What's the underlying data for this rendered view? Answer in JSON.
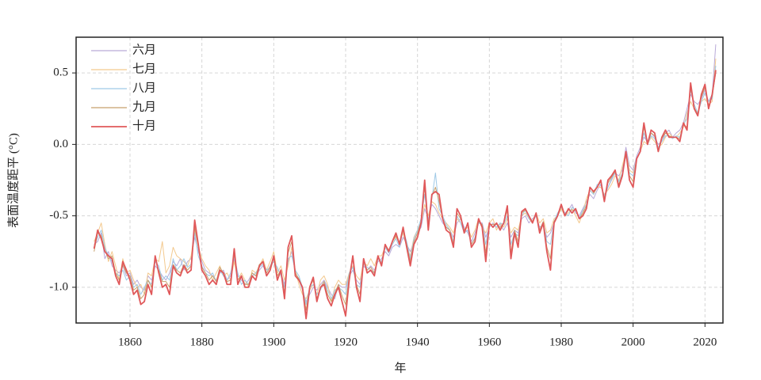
{
  "chart_data": {
    "type": "line",
    "xlabel": "年",
    "ylabel": "表面温度距平 (°C)",
    "xlim": [
      1845,
      2025
    ],
    "xticks": [
      1860,
      1880,
      1900,
      1920,
      1940,
      1960,
      1980,
      2000,
      2020
    ],
    "ylim": [
      -1.25,
      0.75
    ],
    "yticks": [
      {
        "value": -1.0,
        "label": "-1.0"
      },
      -0.5,
      {
        "value": 0.0,
        "label": "0.0"
      },
      0.5
    ],
    "grid": true,
    "legend": "upper left",
    "x": [
      1850,
      1851,
      1852,
      1853,
      1854,
      1855,
      1856,
      1857,
      1858,
      1859,
      1860,
      1861,
      1862,
      1863,
      1864,
      1865,
      1866,
      1867,
      1868,
      1869,
      1870,
      1871,
      1872,
      1873,
      1874,
      1875,
      1876,
      1877,
      1878,
      1879,
      1880,
      1881,
      1882,
      1883,
      1884,
      1885,
      1886,
      1887,
      1888,
      1889,
      1890,
      1891,
      1892,
      1893,
      1894,
      1895,
      1896,
      1897,
      1898,
      1899,
      1900,
      1901,
      1902,
      1903,
      1904,
      1905,
      1906,
      1907,
      1908,
      1909,
      1910,
      1911,
      1912,
      1913,
      1914,
      1915,
      1916,
      1917,
      1918,
      1919,
      1920,
      1921,
      1922,
      1923,
      1924,
      1925,
      1926,
      1927,
      1928,
      1929,
      1930,
      1931,
      1932,
      1933,
      1934,
      1935,
      1936,
      1937,
      1938,
      1939,
      1940,
      1941,
      1942,
      1943,
      1944,
      1945,
      1946,
      1947,
      1948,
      1949,
      1950,
      1951,
      1952,
      1953,
      1954,
      1955,
      1956,
      1957,
      1958,
      1959,
      1960,
      1961,
      1962,
      1963,
      1964,
      1965,
      1966,
      1967,
      1968,
      1969,
      1970,
      1971,
      1972,
      1973,
      1974,
      1975,
      1976,
      1977,
      1978,
      1979,
      1980,
      1981,
      1982,
      1983,
      1984,
      1985,
      1986,
      1987,
      1988,
      1989,
      1990,
      1991,
      1992,
      1993,
      1994,
      1995,
      1996,
      1997,
      1998,
      1999,
      2000,
      2001,
      2002,
      2003,
      2004,
      2005,
      2006,
      2007,
      2008,
      2009,
      2010,
      2011,
      2012,
      2013,
      2014,
      2015,
      2016,
      2017,
      2018,
      2019,
      2020,
      2021,
      2022,
      2023
    ],
    "series": [
      {
        "name": "六月",
        "color": "#b9aad8",
        "values": [
          -0.7,
          -0.68,
          -0.62,
          -0.8,
          -0.75,
          -0.85,
          -0.88,
          -0.9,
          -0.85,
          -0.92,
          -0.9,
          -0.98,
          -0.95,
          -1.0,
          -1.02,
          -0.92,
          -0.95,
          -0.85,
          -0.88,
          -0.92,
          -0.95,
          -0.9,
          -0.82,
          -0.85,
          -0.8,
          -0.88,
          -0.82,
          -0.8,
          -0.65,
          -0.75,
          -0.82,
          -0.88,
          -0.9,
          -0.92,
          -0.95,
          -0.9,
          -0.88,
          -0.95,
          -0.92,
          -0.8,
          -0.92,
          -0.95,
          -0.98,
          -0.95,
          -0.9,
          -0.92,
          -0.88,
          -0.85,
          -0.9,
          -0.85,
          -0.8,
          -0.88,
          -0.9,
          -0.98,
          -0.82,
          -0.75,
          -0.9,
          -0.95,
          -1.02,
          -1.1,
          -1.05,
          -1.0,
          -1.02,
          -0.98,
          -0.95,
          -1.0,
          -1.05,
          -1.08,
          -0.98,
          -1.0,
          -1.0,
          -0.92,
          -0.88,
          -0.95,
          -0.98,
          -0.85,
          -0.88,
          -0.85,
          -0.88,
          -0.82,
          -0.8,
          -0.75,
          -0.78,
          -0.72,
          -0.7,
          -0.72,
          -0.65,
          -0.7,
          -0.75,
          -0.68,
          -0.62,
          -0.58,
          -0.45,
          -0.52,
          -0.42,
          -0.45,
          -0.5,
          -0.55,
          -0.58,
          -0.6,
          -0.65,
          -0.55,
          -0.52,
          -0.58,
          -0.62,
          -0.68,
          -0.62,
          -0.55,
          -0.55,
          -0.65,
          -0.58,
          -0.55,
          -0.58,
          -0.56,
          -0.6,
          -0.55,
          -0.65,
          -0.6,
          -0.62,
          -0.52,
          -0.5,
          -0.55,
          -0.52,
          -0.5,
          -0.58,
          -0.56,
          -0.65,
          -0.62,
          -0.55,
          -0.48,
          -0.45,
          -0.48,
          -0.46,
          -0.42,
          -0.48,
          -0.5,
          -0.45,
          -0.4,
          -0.35,
          -0.38,
          -0.32,
          -0.28,
          -0.38,
          -0.3,
          -0.25,
          -0.2,
          -0.22,
          -0.18,
          -0.02,
          -0.15,
          -0.18,
          -0.08,
          -0.02,
          0.05,
          0.02,
          0.08,
          0.05,
          0.0,
          0.02,
          0.08,
          0.1,
          0.05,
          0.08,
          0.1,
          0.15,
          0.25,
          0.35,
          0.3,
          0.28,
          0.32,
          0.38,
          0.3,
          0.35,
          0.7
        ]
      },
      {
        "name": "七月",
        "color": "#f3c98e",
        "values": [
          -0.68,
          -0.62,
          -0.55,
          -0.7,
          -0.82,
          -0.75,
          -0.85,
          -0.95,
          -0.8,
          -0.9,
          -0.88,
          -0.95,
          -1.0,
          -0.98,
          -1.05,
          -0.9,
          -0.92,
          -0.8,
          -0.82,
          -0.68,
          -0.9,
          -0.85,
          -0.72,
          -0.78,
          -0.8,
          -0.82,
          -0.85,
          -0.78,
          -0.6,
          -0.72,
          -0.8,
          -0.85,
          -0.88,
          -0.95,
          -0.9,
          -0.85,
          -0.92,
          -0.9,
          -0.95,
          -0.82,
          -0.95,
          -0.9,
          -0.95,
          -1.0,
          -0.88,
          -0.9,
          -0.85,
          -0.8,
          -0.88,
          -0.82,
          -0.75,
          -0.9,
          -0.85,
          -0.95,
          -0.85,
          -0.72,
          -0.88,
          -0.98,
          -1.05,
          -1.08,
          -1.02,
          -0.98,
          -1.05,
          -0.95,
          -0.92,
          -0.98,
          -1.1,
          -1.0,
          -0.95,
          -0.98,
          -0.98,
          -0.9,
          -0.85,
          -0.92,
          -0.95,
          -0.82,
          -0.85,
          -0.8,
          -0.85,
          -0.78,
          -0.78,
          -0.72,
          -0.75,
          -0.7,
          -0.65,
          -0.68,
          -0.62,
          -0.72,
          -0.78,
          -0.65,
          -0.6,
          -0.55,
          -0.42,
          -0.5,
          -0.4,
          -0.42,
          -0.48,
          -0.52,
          -0.55,
          -0.58,
          -0.62,
          -0.52,
          -0.55,
          -0.6,
          -0.58,
          -0.65,
          -0.6,
          -0.52,
          -0.58,
          -0.62,
          -0.55,
          -0.52,
          -0.6,
          -0.55,
          -0.58,
          -0.52,
          -0.62,
          -0.58,
          -0.6,
          -0.5,
          -0.48,
          -0.52,
          -0.55,
          -0.48,
          -0.55,
          -0.52,
          -0.62,
          -0.6,
          -0.52,
          -0.5,
          -0.45,
          -0.5,
          -0.48,
          -0.45,
          -0.5,
          -0.55,
          -0.48,
          -0.38,
          -0.32,
          -0.35,
          -0.3,
          -0.3,
          -0.35,
          -0.32,
          -0.28,
          -0.22,
          -0.25,
          -0.15,
          -0.05,
          -0.18,
          -0.2,
          -0.1,
          -0.05,
          0.02,
          0.0,
          0.05,
          0.02,
          -0.02,
          0.0,
          0.05,
          0.08,
          0.05,
          0.05,
          0.08,
          0.12,
          0.22,
          0.3,
          0.25,
          0.22,
          0.3,
          0.32,
          0.28,
          0.3,
          0.6
        ]
      },
      {
        "name": "八月",
        "color": "#9fc9e6",
        "values": [
          -0.72,
          -0.65,
          -0.6,
          -0.72,
          -0.78,
          -0.82,
          -0.9,
          -0.92,
          -0.88,
          -0.95,
          -0.92,
          -1.0,
          -0.98,
          -1.05,
          -1.0,
          -0.95,
          -0.98,
          -0.82,
          -0.85,
          -0.95,
          -0.92,
          -0.95,
          -0.8,
          -0.88,
          -0.85,
          -0.8,
          -0.86,
          -0.84,
          -0.62,
          -0.78,
          -0.85,
          -0.9,
          -0.92,
          -0.9,
          -0.96,
          -0.88,
          -0.92,
          -0.95,
          -0.9,
          -0.78,
          -0.9,
          -0.98,
          -0.95,
          -0.98,
          -0.92,
          -0.9,
          -0.86,
          -0.84,
          -0.88,
          -0.86,
          -0.82,
          -0.86,
          -0.92,
          -1.0,
          -0.8,
          -0.78,
          -0.88,
          -0.92,
          -1.0,
          -1.12,
          -1.0,
          -0.98,
          -1.05,
          -1.02,
          -0.96,
          -1.02,
          -1.08,
          -1.02,
          -1.0,
          -1.02,
          -1.05,
          -0.9,
          -0.86,
          -0.98,
          -1.0,
          -0.84,
          -0.86,
          -0.88,
          -0.9,
          -0.8,
          -0.82,
          -0.72,
          -0.76,
          -0.7,
          -0.66,
          -0.72,
          -0.6,
          -0.68,
          -0.8,
          -0.66,
          -0.6,
          -0.52,
          -0.35,
          -0.55,
          -0.38,
          -0.2,
          -0.45,
          -0.5,
          -0.56,
          -0.6,
          -0.68,
          -0.5,
          -0.55,
          -0.62,
          -0.6,
          -0.7,
          -0.65,
          -0.55,
          -0.56,
          -0.7,
          -0.56,
          -0.56,
          -0.58,
          -0.55,
          -0.56,
          -0.5,
          -0.7,
          -0.62,
          -0.64,
          -0.5,
          -0.46,
          -0.52,
          -0.54,
          -0.5,
          -0.6,
          -0.54,
          -0.68,
          -0.7,
          -0.54,
          -0.48,
          -0.44,
          -0.48,
          -0.5,
          -0.44,
          -0.46,
          -0.52,
          -0.46,
          -0.42,
          -0.32,
          -0.35,
          -0.28,
          -0.28,
          -0.36,
          -0.3,
          -0.24,
          -0.2,
          -0.26,
          -0.2,
          -0.08,
          -0.2,
          -0.22,
          -0.1,
          -0.04,
          0.08,
          0.0,
          0.06,
          0.04,
          -0.02,
          0.02,
          0.06,
          0.06,
          0.04,
          0.06,
          0.05,
          0.14,
          0.18,
          0.38,
          0.28,
          0.22,
          0.3,
          0.36,
          0.3,
          0.32,
          0.55
        ]
      },
      {
        "name": "九月",
        "color": "#c8a06c",
        "values": [
          -0.75,
          -0.62,
          -0.64,
          -0.74,
          -0.8,
          -0.78,
          -0.9,
          -0.95,
          -0.84,
          -0.9,
          -0.92,
          -1.02,
          -1.0,
          -1.08,
          -1.05,
          -0.95,
          -1.0,
          -0.8,
          -0.88,
          -0.96,
          -0.96,
          -1.0,
          -0.84,
          -0.88,
          -0.9,
          -0.84,
          -0.88,
          -0.85,
          -0.58,
          -0.72,
          -0.86,
          -0.9,
          -0.95,
          -0.92,
          -0.96,
          -0.86,
          -0.9,
          -0.96,
          -0.95,
          -0.76,
          -0.95,
          -0.92,
          -0.98,
          -0.98,
          -0.9,
          -0.92,
          -0.84,
          -0.82,
          -0.9,
          -0.86,
          -0.78,
          -0.92,
          -0.88,
          -1.04,
          -0.76,
          -0.68,
          -0.9,
          -0.94,
          -1.0,
          -1.16,
          -1.0,
          -0.95,
          -1.08,
          -1.0,
          -0.96,
          -1.05,
          -1.1,
          -1.04,
          -0.98,
          -1.06,
          -1.12,
          -0.92,
          -0.8,
          -0.98,
          -1.05,
          -0.82,
          -0.88,
          -0.86,
          -0.9,
          -0.78,
          -0.84,
          -0.7,
          -0.74,
          -0.68,
          -0.64,
          -0.7,
          -0.6,
          -0.7,
          -0.82,
          -0.68,
          -0.62,
          -0.54,
          -0.3,
          -0.56,
          -0.36,
          -0.3,
          -0.4,
          -0.52,
          -0.58,
          -0.6,
          -0.7,
          -0.48,
          -0.52,
          -0.6,
          -0.56,
          -0.7,
          -0.66,
          -0.54,
          -0.56,
          -0.76,
          -0.56,
          -0.56,
          -0.56,
          -0.58,
          -0.55,
          -0.46,
          -0.76,
          -0.6,
          -0.68,
          -0.48,
          -0.46,
          -0.5,
          -0.54,
          -0.48,
          -0.6,
          -0.54,
          -0.72,
          -0.8,
          -0.54,
          -0.5,
          -0.43,
          -0.5,
          -0.46,
          -0.46,
          -0.46,
          -0.52,
          -0.48,
          -0.43,
          -0.3,
          -0.34,
          -0.3,
          -0.26,
          -0.38,
          -0.27,
          -0.23,
          -0.19,
          -0.28,
          -0.21,
          -0.06,
          -0.22,
          -0.26,
          -0.1,
          -0.05,
          0.12,
          0.0,
          0.08,
          0.06,
          -0.04,
          0.04,
          0.08,
          0.06,
          0.05,
          0.05,
          0.04,
          0.14,
          0.12,
          0.4,
          0.26,
          0.21,
          0.33,
          0.4,
          0.27,
          0.34,
          0.5
        ]
      },
      {
        "name": "十月",
        "color": "#e0585a",
        "values": [
          -0.73,
          -0.6,
          -0.66,
          -0.75,
          -0.78,
          -0.8,
          -0.92,
          -0.98,
          -0.82,
          -0.88,
          -0.95,
          -1.05,
          -1.02,
          -1.12,
          -1.1,
          -0.98,
          -1.05,
          -0.78,
          -0.9,
          -1.0,
          -0.98,
          -1.05,
          -0.85,
          -0.9,
          -0.92,
          -0.85,
          -0.9,
          -0.88,
          -0.53,
          -0.7,
          -0.88,
          -0.92,
          -0.98,
          -0.95,
          -0.98,
          -0.88,
          -0.9,
          -0.98,
          -0.98,
          -0.73,
          -0.98,
          -0.92,
          -1.0,
          -1.0,
          -0.92,
          -0.95,
          -0.85,
          -0.82,
          -0.92,
          -0.88,
          -0.78,
          -0.95,
          -0.88,
          -1.08,
          -0.72,
          -0.64,
          -0.92,
          -0.95,
          -1.0,
          -1.22,
          -1.0,
          -0.93,
          -1.1,
          -1.0,
          -0.98,
          -1.08,
          -1.13,
          -1.05,
          -1.0,
          -1.1,
          -1.2,
          -0.95,
          -0.78,
          -1.0,
          -1.1,
          -0.8,
          -0.9,
          -0.88,
          -0.92,
          -0.78,
          -0.85,
          -0.7,
          -0.75,
          -0.68,
          -0.62,
          -0.7,
          -0.58,
          -0.72,
          -0.85,
          -0.7,
          -0.65,
          -0.55,
          -0.25,
          -0.6,
          -0.35,
          -0.33,
          -0.35,
          -0.52,
          -0.6,
          -0.62,
          -0.72,
          -0.45,
          -0.5,
          -0.62,
          -0.55,
          -0.72,
          -0.68,
          -0.52,
          -0.58,
          -0.82,
          -0.55,
          -0.58,
          -0.55,
          -0.6,
          -0.55,
          -0.43,
          -0.8,
          -0.62,
          -0.72,
          -0.47,
          -0.45,
          -0.5,
          -0.55,
          -0.48,
          -0.62,
          -0.55,
          -0.75,
          -0.88,
          -0.55,
          -0.5,
          -0.42,
          -0.5,
          -0.45,
          -0.48,
          -0.45,
          -0.52,
          -0.5,
          -0.45,
          -0.3,
          -0.33,
          -0.3,
          -0.25,
          -0.4,
          -0.25,
          -0.22,
          -0.18,
          -0.3,
          -0.22,
          -0.05,
          -0.25,
          -0.3,
          -0.1,
          -0.05,
          0.15,
          0.0,
          0.1,
          0.08,
          -0.05,
          0.05,
          0.1,
          0.05,
          0.05,
          0.05,
          0.02,
          0.15,
          0.1,
          0.43,
          0.25,
          0.2,
          0.35,
          0.42,
          0.25,
          0.35,
          0.52
        ]
      }
    ]
  }
}
